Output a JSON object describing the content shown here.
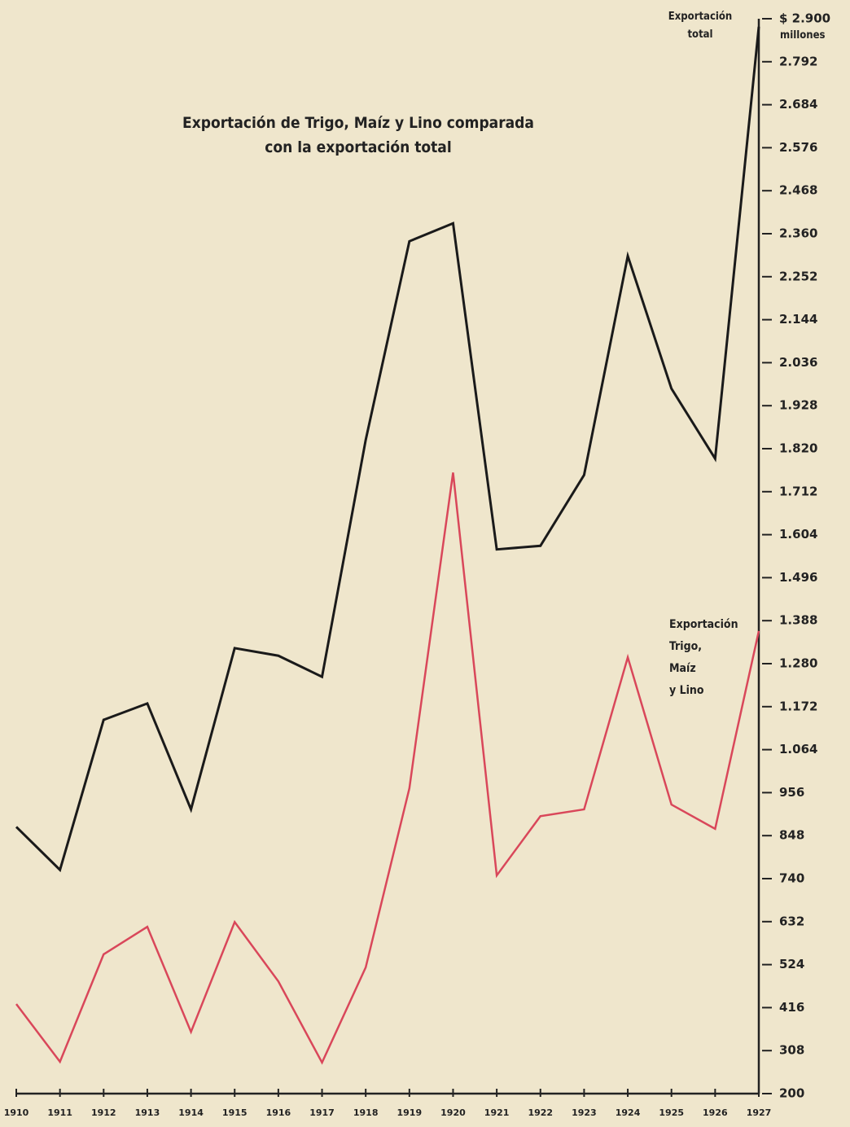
{
  "chart_data": {
    "type": "line",
    "title": "Exportación de Trigo, Maíz y Lino comparada\ncon la exportación total",
    "y_axis_unit": "millones",
    "categories": [
      "1910",
      "1911",
      "1912",
      "1913",
      "1914",
      "1915",
      "1916",
      "1917",
      "1918",
      "1919",
      "1920",
      "1921",
      "1922",
      "1923",
      "1924",
      "1925",
      "1926",
      "1927"
    ],
    "series": [
      {
        "name": "Exportación\ntotal",
        "color": "#1a1a1a",
        "values": [
          870,
          762,
          1139,
          1180,
          914,
          1319,
          1300,
          1247,
          1842,
          2341,
          2386,
          1567,
          1576,
          1754,
          2304,
          1971,
          1795,
          2880
        ]
      },
      {
        "name": "Exportación\nTrigo,\nMaíz\ny Lino",
        "color": "#d9475a",
        "values": [
          425,
          280,
          550,
          619,
          355,
          631,
          482,
          278,
          517,
          967,
          1760,
          748,
          897,
          914,
          1296,
          926,
          865,
          1362
        ]
      }
    ],
    "ylim": [
      200,
      2900
    ],
    "yticks": [
      200,
      308,
      416,
      524,
      632,
      740,
      848,
      956,
      {
        "value": 1064,
        "label": "1.064"
      },
      {
        "value": 1172,
        "label": "1.172"
      },
      {
        "value": 1280,
        "label": "1.280"
      },
      {
        "value": 1388,
        "label": "1.388"
      },
      {
        "value": 1496,
        "label": "1.496"
      },
      {
        "value": 1604,
        "label": "1.604"
      },
      {
        "value": 1712,
        "label": "1.712"
      },
      {
        "value": 1820,
        "label": "1.820"
      },
      {
        "value": 1928,
        "label": "1.928"
      },
      {
        "value": 2036,
        "label": "2.036"
      },
      {
        "value": 2144,
        "label": "2.144"
      },
      {
        "value": 2252,
        "label": "2.252"
      },
      {
        "value": 2360,
        "label": "2.360"
      },
      {
        "value": 2468,
        "label": "2.468"
      },
      {
        "value": 2576,
        "label": "2.576"
      },
      {
        "value": 2684,
        "label": "2.684"
      },
      {
        "value": 2792,
        "label": "2.792"
      },
      {
        "value": 2900,
        "label": "$ 2.900"
      }
    ],
    "grid": false
  }
}
